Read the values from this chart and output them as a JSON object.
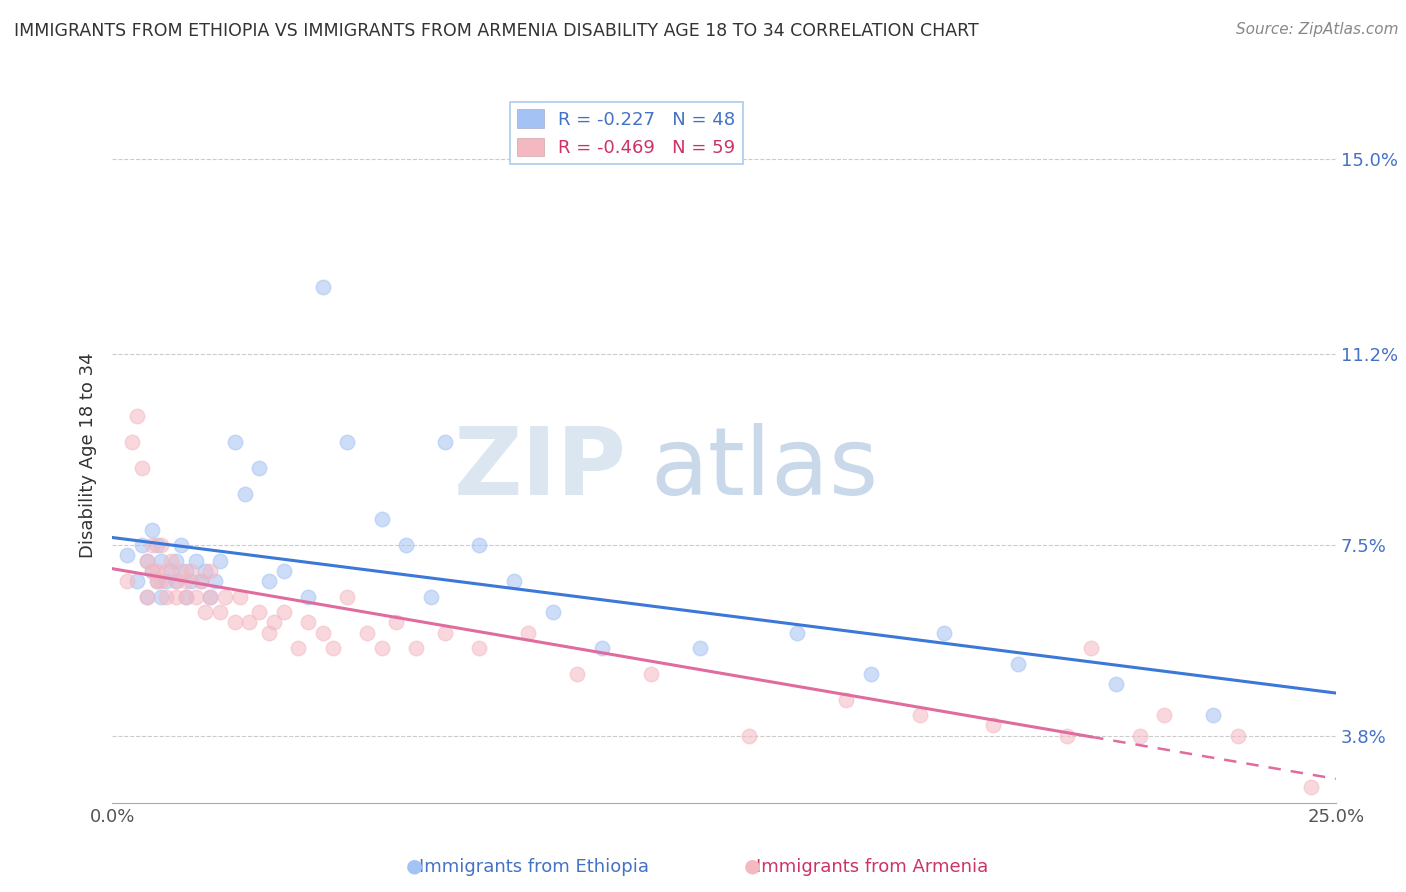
{
  "title": "IMMIGRANTS FROM ETHIOPIA VS IMMIGRANTS FROM ARMENIA DISABILITY AGE 18 TO 34 CORRELATION CHART",
  "source": "Source: ZipAtlas.com",
  "ylabel": "Disability Age 18 to 34",
  "xlim": [
    0.0,
    0.25
  ],
  "ylim": [
    0.025,
    0.16
  ],
  "ytick_labels_right": [
    "15.0%",
    "11.2%",
    "7.5%",
    "3.8%"
  ],
  "ytick_vals_right": [
    0.15,
    0.112,
    0.075,
    0.038
  ],
  "ethiopia_R": -0.227,
  "ethiopia_N": 48,
  "armenia_R": -0.469,
  "armenia_N": 59,
  "blue_color": "#a4c2f4",
  "pink_color": "#f4b8c1",
  "blue_line_color": "#3c78d8",
  "pink_line_color": "#e06c9f",
  "legend_label_ethiopia": "Immigrants from Ethiopia",
  "legend_label_armenia": "Immigrants from Armenia",
  "ethiopia_x": [
    0.003,
    0.005,
    0.006,
    0.007,
    0.007,
    0.008,
    0.008,
    0.009,
    0.009,
    0.01,
    0.01,
    0.011,
    0.012,
    0.013,
    0.013,
    0.014,
    0.015,
    0.015,
    0.016,
    0.017,
    0.018,
    0.019,
    0.02,
    0.021,
    0.022,
    0.025,
    0.027,
    0.03,
    0.032,
    0.035,
    0.04,
    0.043,
    0.048,
    0.055,
    0.06,
    0.065,
    0.068,
    0.075,
    0.082,
    0.09,
    0.1,
    0.12,
    0.14,
    0.155,
    0.17,
    0.185,
    0.205,
    0.225
  ],
  "ethiopia_y": [
    0.073,
    0.068,
    0.075,
    0.065,
    0.072,
    0.07,
    0.078,
    0.068,
    0.075,
    0.065,
    0.072,
    0.068,
    0.07,
    0.072,
    0.068,
    0.075,
    0.065,
    0.07,
    0.068,
    0.072,
    0.068,
    0.07,
    0.065,
    0.068,
    0.072,
    0.095,
    0.085,
    0.09,
    0.068,
    0.07,
    0.065,
    0.125,
    0.095,
    0.08,
    0.075,
    0.065,
    0.095,
    0.075,
    0.068,
    0.062,
    0.055,
    0.055,
    0.058,
    0.05,
    0.058,
    0.052,
    0.048,
    0.042
  ],
  "armenia_x": [
    0.003,
    0.004,
    0.005,
    0.006,
    0.007,
    0.007,
    0.008,
    0.008,
    0.009,
    0.009,
    0.01,
    0.01,
    0.011,
    0.011,
    0.012,
    0.013,
    0.013,
    0.014,
    0.015,
    0.015,
    0.016,
    0.017,
    0.018,
    0.019,
    0.02,
    0.02,
    0.022,
    0.023,
    0.025,
    0.026,
    0.028,
    0.03,
    0.032,
    0.033,
    0.035,
    0.038,
    0.04,
    0.043,
    0.045,
    0.048,
    0.052,
    0.055,
    0.058,
    0.062,
    0.068,
    0.075,
    0.085,
    0.095,
    0.11,
    0.13,
    0.15,
    0.165,
    0.18,
    0.195,
    0.2,
    0.21,
    0.215,
    0.23,
    0.245
  ],
  "armenia_y": [
    0.068,
    0.095,
    0.1,
    0.09,
    0.065,
    0.072,
    0.07,
    0.075,
    0.068,
    0.07,
    0.068,
    0.075,
    0.065,
    0.07,
    0.072,
    0.065,
    0.068,
    0.07,
    0.065,
    0.068,
    0.07,
    0.065,
    0.068,
    0.062,
    0.065,
    0.07,
    0.062,
    0.065,
    0.06,
    0.065,
    0.06,
    0.062,
    0.058,
    0.06,
    0.062,
    0.055,
    0.06,
    0.058,
    0.055,
    0.065,
    0.058,
    0.055,
    0.06,
    0.055,
    0.058,
    0.055,
    0.058,
    0.05,
    0.05,
    0.038,
    0.045,
    0.042,
    0.04,
    0.038,
    0.055,
    0.038,
    0.042,
    0.038,
    0.028
  ]
}
